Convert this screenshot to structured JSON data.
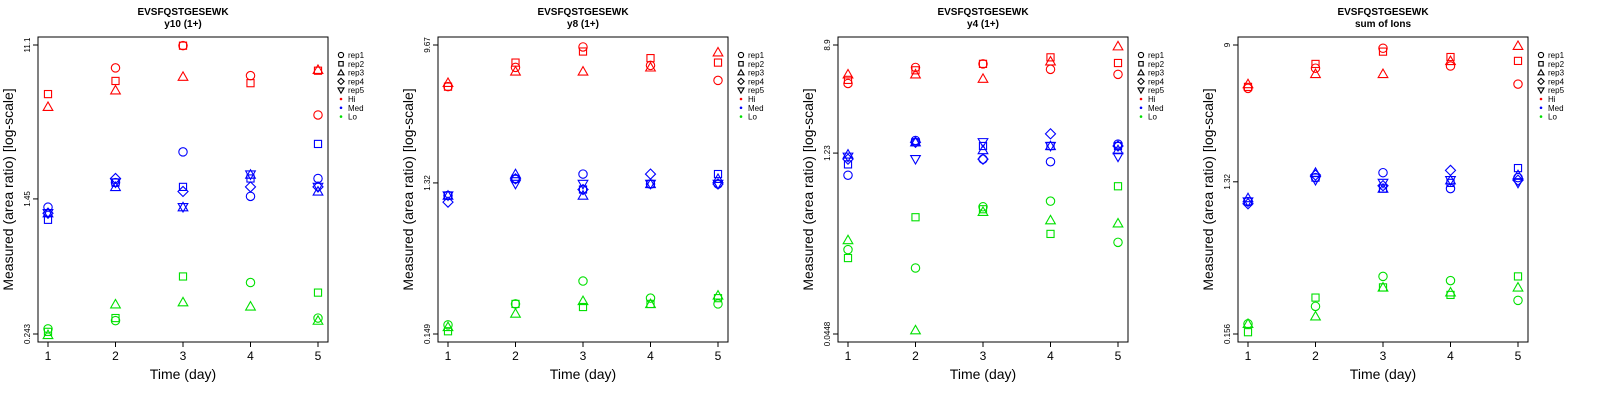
{
  "figure": {
    "width": 1600,
    "height": 400
  },
  "colors": {
    "Hi": "#ff0000",
    "Med": "#0000ff",
    "Lo": "#00e000"
  },
  "legend": {
    "placement": "right-outside",
    "shapes": [
      {
        "label": "rep1",
        "shape": "circle"
      },
      {
        "label": "rep2",
        "shape": "square"
      },
      {
        "label": "rep3",
        "shape": "triangle-up"
      },
      {
        "label": "rep4",
        "shape": "diamond"
      },
      {
        "label": "rep5",
        "shape": "triangle-down"
      }
    ],
    "groups": [
      {
        "label": "Hi",
        "color": "#ff0000"
      },
      {
        "label": "Med",
        "color": "#0000ff"
      },
      {
        "label": "Lo",
        "color": "#00e000"
      }
    ]
  },
  "chart_data": [
    {
      "type": "scatter",
      "title": "EVSFQSTGESEWK",
      "subtitle": "y10 (1+)",
      "xlabel": "Time (day)",
      "ylabel": "Measured (area ratio) [log-scale]",
      "yscale": "log",
      "x_ticks": [
        1,
        2,
        3,
        4,
        5
      ],
      "y_ticks": [
        {
          "value": 0.243,
          "label": "0.243"
        },
        {
          "value": 1.45,
          "label": "1.45"
        },
        {
          "value": 11.1,
          "label": "11.1"
        }
      ],
      "ylim": [
        0.243,
        11.1
      ],
      "grid": false,
      "series": [
        {
          "group": "Hi",
          "rep": "rep1",
          "values": [
            null,
            8.2,
            11.0,
            7.4,
            4.4
          ]
        },
        {
          "group": "Hi",
          "rep": "rep2",
          "values": [
            5.8,
            6.9,
            11.0,
            6.7,
            7.9
          ]
        },
        {
          "group": "Hi",
          "rep": "rep3",
          "values": [
            4.9,
            6.1,
            7.3,
            null,
            8.0
          ]
        },
        {
          "group": "Hi",
          "rep": "rep4",
          "values": [
            null,
            null,
            null,
            null,
            null
          ]
        },
        {
          "group": "Hi",
          "rep": "rep5",
          "values": [
            null,
            null,
            null,
            null,
            null
          ]
        },
        {
          "group": "Med",
          "rep": "rep1",
          "values": [
            1.3,
            1.8,
            2.7,
            1.5,
            1.9
          ]
        },
        {
          "group": "Med",
          "rep": "rep2",
          "values": [
            1.1,
            1.8,
            1.7,
            1.9,
            3.0
          ]
        },
        {
          "group": "Med",
          "rep": "rep3",
          "values": [
            1.2,
            1.7,
            1.3,
            2.0,
            1.6
          ]
        },
        {
          "group": "Med",
          "rep": "rep4",
          "values": [
            1.2,
            1.9,
            1.6,
            1.7,
            1.7
          ]
        },
        {
          "group": "Med",
          "rep": "rep5",
          "values": [
            1.2,
            1.8,
            1.3,
            2.0,
            1.7
          ]
        },
        {
          "group": "Lo",
          "rep": "rep1",
          "values": [
            0.26,
            0.29,
            null,
            0.48,
            0.3
          ]
        },
        {
          "group": "Lo",
          "rep": "rep2",
          "values": [
            0.25,
            0.3,
            0.52,
            null,
            0.42
          ]
        },
        {
          "group": "Lo",
          "rep": "rep3",
          "values": [
            0.24,
            0.36,
            0.37,
            0.35,
            0.29
          ]
        },
        {
          "group": "Lo",
          "rep": "rep4",
          "values": [
            null,
            null,
            null,
            null,
            null
          ]
        },
        {
          "group": "Lo",
          "rep": "rep5",
          "values": [
            null,
            null,
            null,
            null,
            null
          ]
        }
      ]
    },
    {
      "type": "scatter",
      "title": "EVSFQSTGESEWK",
      "subtitle": "y8 (1+)",
      "xlabel": "Time (day)",
      "ylabel": "Measured (area ratio) [log-scale]",
      "yscale": "log",
      "x_ticks": [
        1,
        2,
        3,
        4,
        5
      ],
      "y_ticks": [
        {
          "value": 0.149,
          "label": "0.149"
        },
        {
          "value": 1.32,
          "label": "1.32"
        },
        {
          "value": 9.67,
          "label": "9.67"
        }
      ],
      "ylim": [
        0.149,
        9.67
      ],
      "grid": false,
      "series": [
        {
          "group": "Hi",
          "rep": "rep1",
          "values": [
            5.3,
            7.0,
            9.4,
            7.2,
            5.8
          ]
        },
        {
          "group": "Hi",
          "rep": "rep2",
          "values": [
            5.3,
            7.5,
            8.8,
            8.0,
            7.5
          ]
        },
        {
          "group": "Hi",
          "rep": "rep3",
          "values": [
            5.6,
            6.6,
            6.6,
            7.0,
            8.7
          ]
        },
        {
          "group": "Hi",
          "rep": "rep4",
          "values": [
            null,
            null,
            null,
            null,
            null
          ]
        },
        {
          "group": "Hi",
          "rep": "rep5",
          "values": [
            null,
            null,
            null,
            null,
            null
          ]
        },
        {
          "group": "Med",
          "rep": "rep1",
          "values": [
            1.1,
            1.4,
            1.5,
            1.3,
            1.3
          ]
        },
        {
          "group": "Med",
          "rep": "rep2",
          "values": [
            1.1,
            1.4,
            1.2,
            1.3,
            1.5
          ]
        },
        {
          "group": "Med",
          "rep": "rep3",
          "values": [
            1.1,
            1.5,
            1.1,
            1.3,
            1.4
          ]
        },
        {
          "group": "Med",
          "rep": "rep4",
          "values": [
            1.0,
            1.4,
            1.2,
            1.5,
            1.3
          ]
        },
        {
          "group": "Med",
          "rep": "rep5",
          "values": [
            1.1,
            1.3,
            1.3,
            1.3,
            1.3
          ]
        },
        {
          "group": "Lo",
          "rep": "rep1",
          "values": [
            0.17,
            0.23,
            0.32,
            0.25,
            0.23
          ]
        },
        {
          "group": "Lo",
          "rep": "rep2",
          "values": [
            0.155,
            0.23,
            0.22,
            0.23,
            0.25
          ]
        },
        {
          "group": "Lo",
          "rep": "rep3",
          "values": [
            0.165,
            0.2,
            0.24,
            0.23,
            0.26
          ]
        },
        {
          "group": "Lo",
          "rep": "rep4",
          "values": [
            null,
            null,
            null,
            null,
            null
          ]
        },
        {
          "group": "Lo",
          "rep": "rep5",
          "values": [
            null,
            null,
            null,
            null,
            null
          ]
        }
      ]
    },
    {
      "type": "scatter",
      "title": "EVSFQSTGESEWK",
      "subtitle": "y4 (1+)",
      "xlabel": "Time (day)",
      "ylabel": "Measured (area ratio) [log-scale]",
      "yscale": "log",
      "x_ticks": [
        1,
        2,
        3,
        4,
        5
      ],
      "y_ticks": [
        {
          "value": 0.0448,
          "label": "0.0448"
        },
        {
          "value": 1.23,
          "label": "1.23"
        },
        {
          "value": 8.9,
          "label": "8.9"
        }
      ],
      "ylim": [
        0.0448,
        8.9
      ],
      "grid": false,
      "series": [
        {
          "group": "Hi",
          "rep": "rep1",
          "values": [
            4.4,
            5.9,
            6.3,
            5.7,
            5.2
          ]
        },
        {
          "group": "Hi",
          "rep": "rep2",
          "values": [
            4.7,
            5.6,
            6.3,
            7.1,
            6.4
          ]
        },
        {
          "group": "Hi",
          "rep": "rep3",
          "values": [
            5.2,
            5.2,
            4.8,
            6.6,
            8.7
          ]
        },
        {
          "group": "Hi",
          "rep": "rep4",
          "values": [
            null,
            null,
            null,
            null,
            null
          ]
        },
        {
          "group": "Hi",
          "rep": "rep5",
          "values": [
            null,
            null,
            null,
            null,
            null
          ]
        },
        {
          "group": "Med",
          "rep": "rep1",
          "values": [
            0.82,
            1.55,
            1.1,
            1.05,
            1.45
          ]
        },
        {
          "group": "Med",
          "rep": "rep2",
          "values": [
            1.0,
            1.5,
            1.4,
            1.4,
            1.4
          ]
        },
        {
          "group": "Med",
          "rep": "rep3",
          "values": [
            1.2,
            1.5,
            1.3,
            1.4,
            1.3
          ]
        },
        {
          "group": "Med",
          "rep": "rep4",
          "values": [
            1.1,
            1.5,
            1.1,
            1.75,
            1.4
          ]
        },
        {
          "group": "Med",
          "rep": "rep5",
          "values": [
            1.15,
            1.1,
            1.5,
            1.4,
            1.15
          ]
        },
        {
          "group": "Lo",
          "rep": "rep1",
          "values": [
            0.21,
            0.15,
            0.46,
            0.51,
            0.24
          ]
        },
        {
          "group": "Lo",
          "rep": "rep2",
          "values": [
            0.18,
            0.38,
            0.44,
            0.28,
            0.67
          ]
        },
        {
          "group": "Lo",
          "rep": "rep3",
          "values": [
            0.25,
            0.048,
            0.42,
            0.36,
            0.34
          ]
        },
        {
          "group": "Lo",
          "rep": "rep4",
          "values": [
            null,
            null,
            null,
            null,
            null
          ]
        },
        {
          "group": "Lo",
          "rep": "rep5",
          "values": [
            null,
            null,
            null,
            null,
            null
          ]
        }
      ]
    },
    {
      "type": "scatter",
      "title": "EVSFQSTGESEWK",
      "subtitle": "sum of Ions",
      "xlabel": "Time (day)",
      "ylabel": "Measured (area ratio) [log-scale]",
      "yscale": "log",
      "x_ticks": [
        1,
        2,
        3,
        4,
        5
      ],
      "y_ticks": [
        {
          "value": 0.156,
          "label": "0.156"
        },
        {
          "value": 1.32,
          "label": "1.32"
        },
        {
          "value": 9,
          "label": "9"
        }
      ],
      "ylim": [
        0.156,
        9
      ],
      "grid": false,
      "series": [
        {
          "group": "Hi",
          "rep": "rep1",
          "values": [
            4.9,
            6.5,
            8.6,
            6.7,
            5.2
          ]
        },
        {
          "group": "Hi",
          "rep": "rep2",
          "values": [
            5.0,
            6.9,
            8.2,
            7.6,
            7.2
          ]
        },
        {
          "group": "Hi",
          "rep": "rep3",
          "values": [
            5.2,
            6.0,
            6.0,
            7.2,
            8.9
          ]
        },
        {
          "group": "Hi",
          "rep": "rep4",
          "values": [
            null,
            null,
            null,
            null,
            null
          ]
        },
        {
          "group": "Hi",
          "rep": "rep5",
          "values": [
            null,
            null,
            null,
            null,
            null
          ]
        },
        {
          "group": "Med",
          "rep": "rep1",
          "values": [
            1.0,
            1.4,
            1.5,
            1.2,
            1.4
          ]
        },
        {
          "group": "Med",
          "rep": "rep2",
          "values": [
            1.0,
            1.4,
            1.2,
            1.3,
            1.6
          ]
        },
        {
          "group": "Med",
          "rep": "rep3",
          "values": [
            1.05,
            1.5,
            1.2,
            1.35,
            1.45
          ]
        },
        {
          "group": "Med",
          "rep": "rep4",
          "values": [
            0.97,
            1.45,
            1.25,
            1.55,
            1.35
          ]
        },
        {
          "group": "Med",
          "rep": "rep5",
          "values": [
            1.0,
            1.35,
            1.3,
            1.35,
            1.3
          ]
        },
        {
          "group": "Lo",
          "rep": "rep1",
          "values": [
            0.18,
            0.23,
            0.35,
            0.33,
            0.25
          ]
        },
        {
          "group": "Lo",
          "rep": "rep2",
          "values": [
            0.16,
            0.26,
            0.3,
            0.27,
            0.35
          ]
        },
        {
          "group": "Lo",
          "rep": "rep3",
          "values": [
            0.18,
            0.2,
            0.3,
            0.28,
            0.3
          ]
        },
        {
          "group": "Lo",
          "rep": "rep4",
          "values": [
            null,
            null,
            null,
            null,
            null
          ]
        },
        {
          "group": "Lo",
          "rep": "rep5",
          "values": [
            null,
            null,
            null,
            null,
            null
          ]
        }
      ]
    }
  ]
}
